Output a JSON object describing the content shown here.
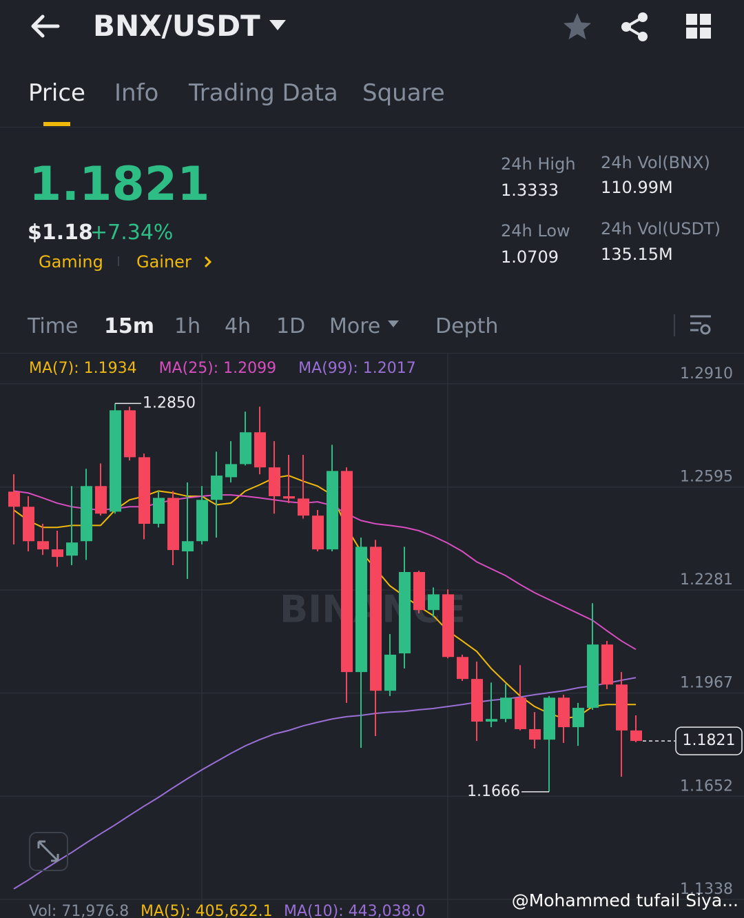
{
  "header": {
    "pair": "BNX/USDT"
  },
  "tabs": [
    "Price",
    "Info",
    "Trading Data",
    "Square"
  ],
  "ticker": {
    "price": "1.1821",
    "usd_price": "$1.18",
    "change": "+7.34%",
    "tags": [
      "Gaming",
      "Gainer"
    ]
  },
  "stats": [
    {
      "label": "24h High",
      "value": "1.3333"
    },
    {
      "label": "24h Vol(BNX)",
      "value": "110.99M"
    },
    {
      "label": "24h Low",
      "value": "1.0709"
    },
    {
      "label": "24h Vol(USDT)",
      "value": "135.15M"
    }
  ],
  "intervals": [
    "Time",
    "15m",
    "1h",
    "4h",
    "1D",
    "More",
    "Depth"
  ],
  "chart_data": {
    "type": "candlestick",
    "up_color": "#2ebd85",
    "down_color": "#f6465d",
    "grid": true,
    "ylim": [
      1.1338,
      1.3002
    ],
    "yticks": [
      {
        "value": 1.291,
        "label": "1.2910"
      },
      1.2595,
      1.2281,
      1.1967,
      1.1652,
      1.1338
    ],
    "open": [
      1.2581,
      1.2535,
      1.243,
      1.2405,
      1.2386,
      1.243,
      1.2598,
      1.252,
      1.2829,
      1.2686,
      1.2483,
      1.2562,
      1.2399,
      1.243,
      1.2556,
      1.2625,
      1.2665,
      1.2762,
      1.2655,
      1.2567,
      1.256,
      1.2508,
      1.2405,
      1.2644,
      1.2031,
      1.2413,
      1.1974,
      1.2088,
      1.2336,
      1.222,
      1.2268,
      1.2077,
      1.201,
      1.188,
      1.1888,
      1.1953,
      1.1857,
      1.1825,
      1.1953,
      1.1863,
      1.1922,
      1.2115,
      1.1993,
      1.1853
    ],
    "high": [
      1.2634,
      1.2567,
      1.2483,
      1.2462,
      1.2598,
      1.2651,
      1.2667,
      1.285,
      1.284,
      1.2697,
      1.2583,
      1.2583,
      1.2609,
      1.2598,
      1.2703,
      1.2735,
      1.2825,
      1.284,
      1.2735,
      1.2693,
      1.2693,
      1.2525,
      1.2724,
      1.2655,
      1.2441,
      1.2434,
      1.2147,
      1.2413,
      1.234,
      1.2289,
      1.2283,
      1.2084,
      1.2063,
      1.1999,
      1.1995,
      1.2052,
      1.1909,
      1.1958,
      1.1962,
      1.1937,
      1.2241,
      1.2126,
      1.2031,
      1.1899
    ],
    "low": [
      1.242,
      1.2399,
      1.2388,
      1.2352,
      1.2357,
      1.2373,
      1.2508,
      1.2514,
      1.2676,
      1.2436,
      1.2472,
      1.2357,
      1.2315,
      1.242,
      1.2441,
      1.2609,
      1.2661,
      1.2634,
      1.2514,
      1.2546,
      1.2499,
      1.2399,
      1.2399,
      1.1937,
      1.18,
      1.1836,
      1.1958,
      1.2042,
      1.221,
      1.2199,
      1.2073,
      1.2004,
      1.1821,
      1.1863,
      1.1878,
      1.1853,
      1.1798,
      1.1666,
      1.1815,
      1.1806,
      1.1916,
      1.1979,
      1.1712,
      1.1817
    ],
    "close": [
      1.2535,
      1.243,
      1.2405,
      1.2382,
      1.2426,
      1.2598,
      1.2514,
      1.2829,
      1.2686,
      1.2483,
      1.2562,
      1.2403,
      1.243,
      1.2556,
      1.263,
      1.2665,
      1.2762,
      1.2655,
      1.2567,
      1.256,
      1.2508,
      1.2405,
      1.2644,
      1.2031,
      1.2413,
      1.1974,
      1.2084,
      1.2336,
      1.222,
      1.2268,
      1.2077,
      1.201,
      1.188,
      1.1888,
      1.1953,
      1.1857,
      1.1825,
      1.1953,
      1.1863,
      1.1922,
      1.2115,
      1.1993,
      1.1853,
      1.1821
    ],
    "series": [
      {
        "name": "MA(7): 1.1934",
        "color": "#f0b90b",
        "values": [
          1.2525,
          1.2493,
          1.2472,
          1.2472,
          1.2478,
          1.2478,
          1.2478,
          1.2525,
          1.2556,
          1.2567,
          1.2583,
          1.2577,
          1.2567,
          1.2567,
          1.2541,
          1.2546,
          1.2583,
          1.2602,
          1.2623,
          1.263,
          1.2613,
          1.2598,
          1.2571,
          1.2472,
          1.2399,
          1.2346,
          1.2294,
          1.2262,
          1.2231,
          1.2203,
          1.2157,
          1.2126,
          1.2094,
          1.2042,
          1.1999,
          1.1958,
          1.1926,
          1.1905,
          1.189,
          1.1895,
          1.1926,
          1.1932,
          1.1932,
          1.1932
        ]
      },
      {
        "name": "MA(25): 1.2099",
        "color": "#d74ec0",
        "values": [
          1.2583,
          1.2577,
          1.2562,
          1.2546,
          1.2535,
          1.2529,
          1.2525,
          1.2529,
          1.2535,
          1.2535,
          1.2546,
          1.2556,
          1.2562,
          1.2567,
          1.2571,
          1.2571,
          1.2567,
          1.2562,
          1.2556,
          1.255,
          1.2546,
          1.255,
          1.2539,
          1.2514,
          1.2493,
          1.2483,
          1.2478,
          1.2472,
          1.2462,
          1.2445,
          1.2424,
          1.2399,
          1.2367,
          1.2346,
          1.2325,
          1.2298,
          1.2273,
          1.2252,
          1.2231,
          1.221,
          1.2189,
          1.2157,
          1.2126,
          1.21
        ]
      },
      {
        "name": "MA(99): 1.2017",
        "color": "#9a6fd6",
        "values": [
          1.137,
          1.1397,
          1.1426,
          1.1454,
          1.1481,
          1.151,
          1.1538,
          1.1565,
          1.1594,
          1.1622,
          1.1649,
          1.1678,
          1.1706,
          1.1733,
          1.1758,
          1.1783,
          1.1806,
          1.1825,
          1.1842,
          1.1853,
          1.1867,
          1.1878,
          1.1888,
          1.1895,
          1.1899,
          1.1905,
          1.1909,
          1.1911,
          1.1916,
          1.192,
          1.1926,
          1.1932,
          1.1939,
          1.1945,
          1.1949,
          1.1955,
          1.1962,
          1.1968,
          1.1974,
          1.1983,
          1.1989,
          1.1997,
          1.2006,
          1.2014
        ]
      }
    ],
    "annotations": [
      {
        "text": "1.2850",
        "value": 1.285
      },
      {
        "text": "1.1666",
        "value": 1.1666
      }
    ],
    "last_price": {
      "text": "1.1821",
      "value": 1.1821
    }
  },
  "volume": {
    "vol": "Vol: 71,976.8",
    "ma5": "MA(5): 405,622.1",
    "ma10": "MA(10): 443,038.0"
  },
  "watermark": "BINANCE",
  "credit": "@Mohammed tufail Siya..."
}
